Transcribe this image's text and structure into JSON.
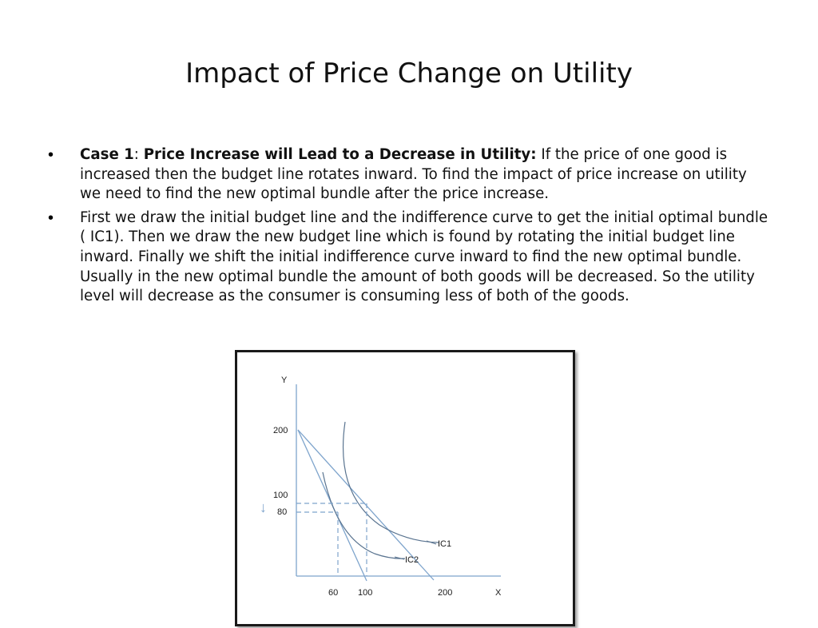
{
  "slide": {
    "title": "Impact of Price Change on Utility",
    "bullets": [
      {
        "label": "Case 1",
        "sep": ": ",
        "heading": "Price Increase will Lead to a Decrease in Utility:",
        "body": " If the price of one good is increased then the budget line rotates inward. To find the impact of price increase on utility we need to find the new optimal bundle after the price increase."
      },
      {
        "body": "First we draw the initial budget line and the indifference curve to get the initial optimal bundle ( IC1). Then we draw the new budget line which is found by rotating the initial budget line inward. Finally we shift the initial indifference curve inward to find the new optimal bundle. Usually in the new optimal bundle the amount of both goods will be decreased. So the utility level will decrease as the consumer is consuming less of both of the goods."
      }
    ]
  },
  "figure": {
    "y_axis_label": "Y",
    "x_axis_label": "X",
    "y_ticks": [
      "200",
      "100",
      "80"
    ],
    "x_ticks": [
      "60",
      "100",
      "200"
    ],
    "curve_labels": [
      "IC1",
      "IC2"
    ],
    "arrow_symbol": "↓",
    "line_color": "#7ea4cc"
  }
}
